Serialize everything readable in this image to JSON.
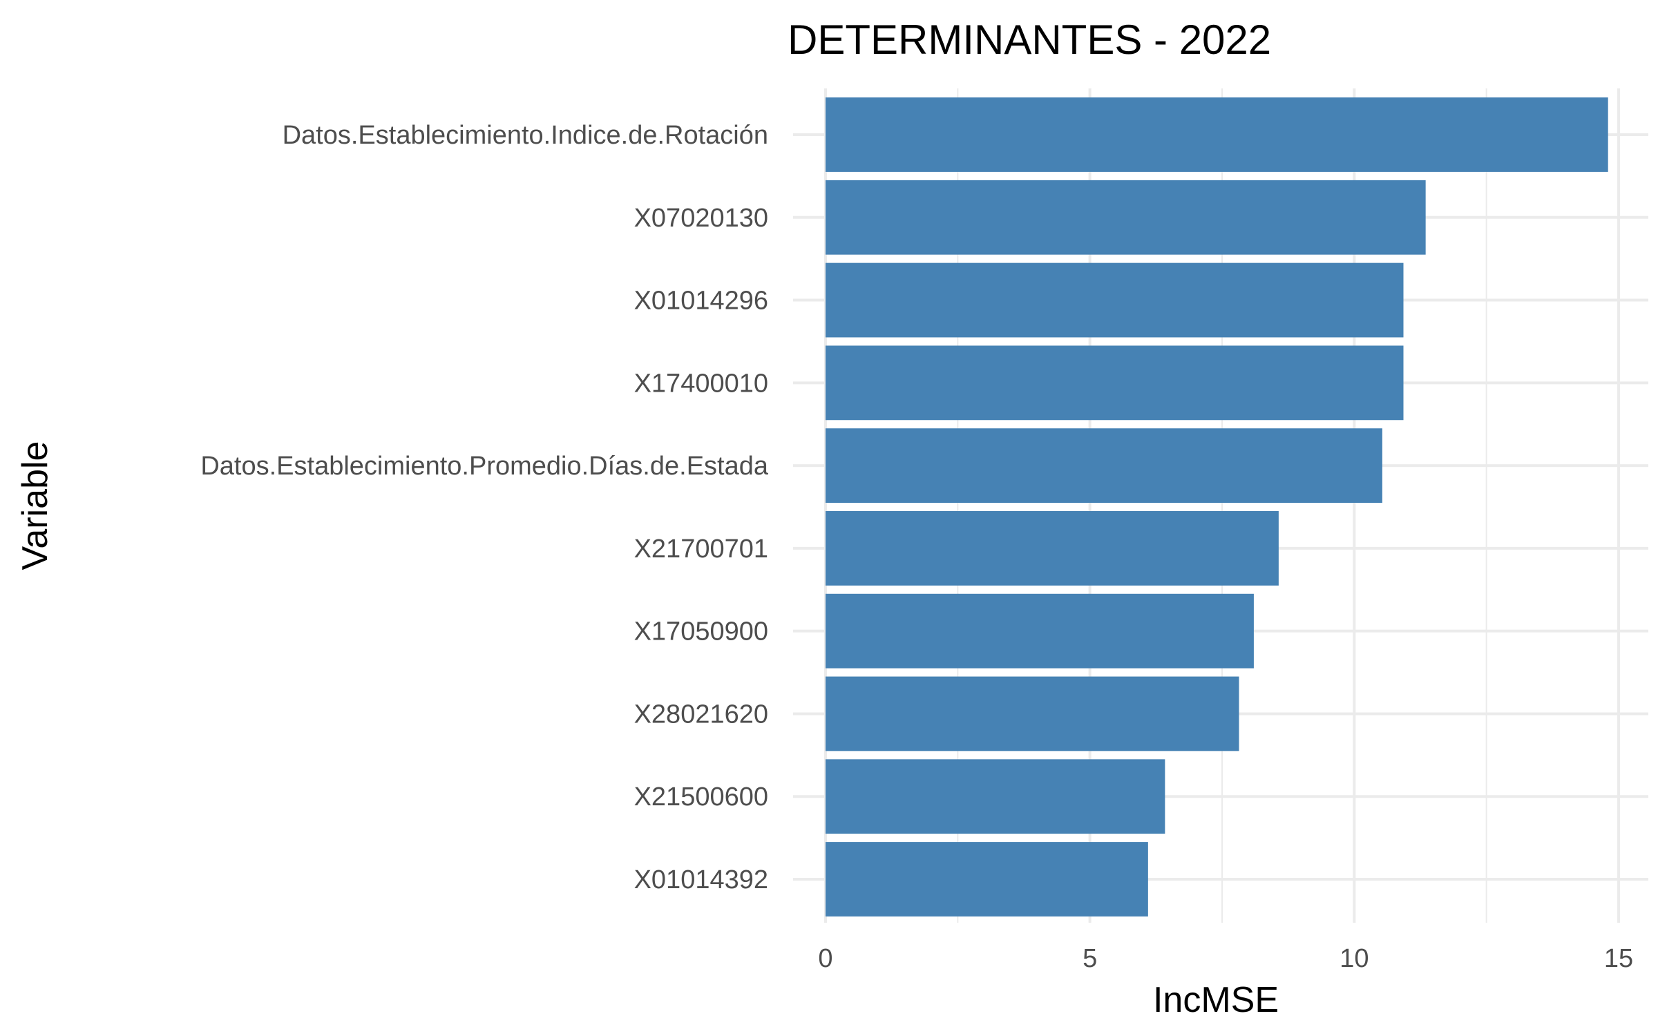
{
  "chart_data": {
    "type": "bar",
    "orientation": "horizontal",
    "title": "DETERMINANTES - 2022",
    "xlabel": "IncMSE",
    "ylabel": "Variable",
    "categories": [
      "Datos.Establecimiento.Indice.de.Rotación",
      "X07020130",
      "X01014296",
      "X17400010",
      "Datos.Establecimiento.Promedio.Días.de.Estada",
      "X21700701",
      "X17050900",
      "X28021620",
      "X21500600",
      "X01014392"
    ],
    "values": [
      14.8,
      11.35,
      10.93,
      10.93,
      10.53,
      8.57,
      8.1,
      7.82,
      6.42,
      6.1
    ],
    "xlim": [
      0,
      15
    ],
    "xticks": [
      0,
      5,
      10,
      15
    ],
    "xtick_labels": [
      "0",
      "5",
      "10",
      "15"
    ],
    "grid": true,
    "legend": "none",
    "bar_color": "#4682B4",
    "grid_color": "#ebebeb"
  }
}
